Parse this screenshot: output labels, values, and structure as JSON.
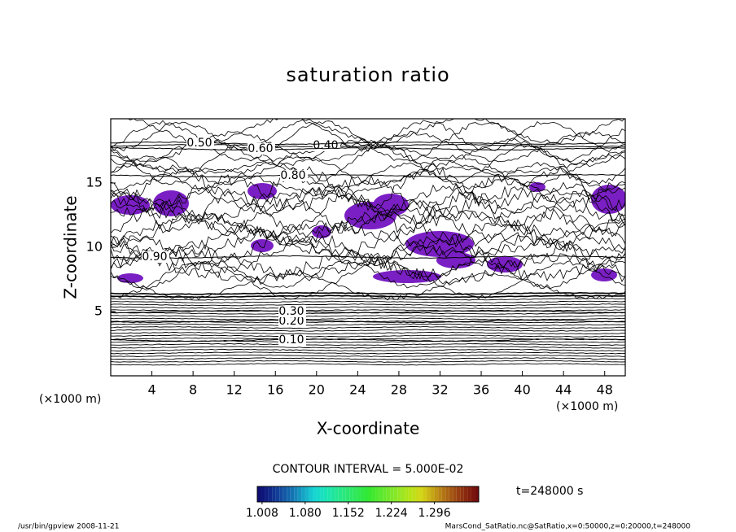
{
  "chart_data": {
    "type": "contour",
    "title": "saturation ratio",
    "xlabel": "X-coordinate",
    "ylabel": "Z-coordinate",
    "x_unit": "(×1000 m)",
    "xlim": [
      0,
      50
    ],
    "ylim": [
      0,
      20
    ],
    "xticks": [
      4,
      8,
      12,
      16,
      20,
      24,
      28,
      32,
      36,
      40,
      44,
      48
    ],
    "yticks": [
      5,
      10,
      15
    ],
    "contour_interval": "CONTOUR INTERVAL = 5.000E-02",
    "contour_labels": [
      {
        "value": 0.1,
        "label": "0.10"
      },
      {
        "value": 0.2,
        "label": "0.20"
      },
      {
        "value": 0.3,
        "label": "0.30"
      },
      {
        "value": 0.4,
        "label": "0.40"
      },
      {
        "value": 0.5,
        "label": "0.50"
      },
      {
        "value": 0.6,
        "label": "0.60"
      },
      {
        "value": 0.8,
        "label": "0.80"
      },
      {
        "value": 0.9,
        "label": "0.90"
      }
    ],
    "shade_color": "#7a1fc4",
    "colorbar": {
      "clim": [
        1.0,
        1.37
      ],
      "ticks": [
        1.008,
        {
          "value": 1.08,
          "label": "1.080"
        },
        1.152,
        1.224,
        1.296
      ]
    },
    "time_label": "t=248000 s",
    "footer_left": "/usr/bin/gpview   2008-11-21",
    "footer_right": "MarsCond_SatRatio.nc@SatRatio,x=0:50000,z=0:20000,t=248000"
  }
}
